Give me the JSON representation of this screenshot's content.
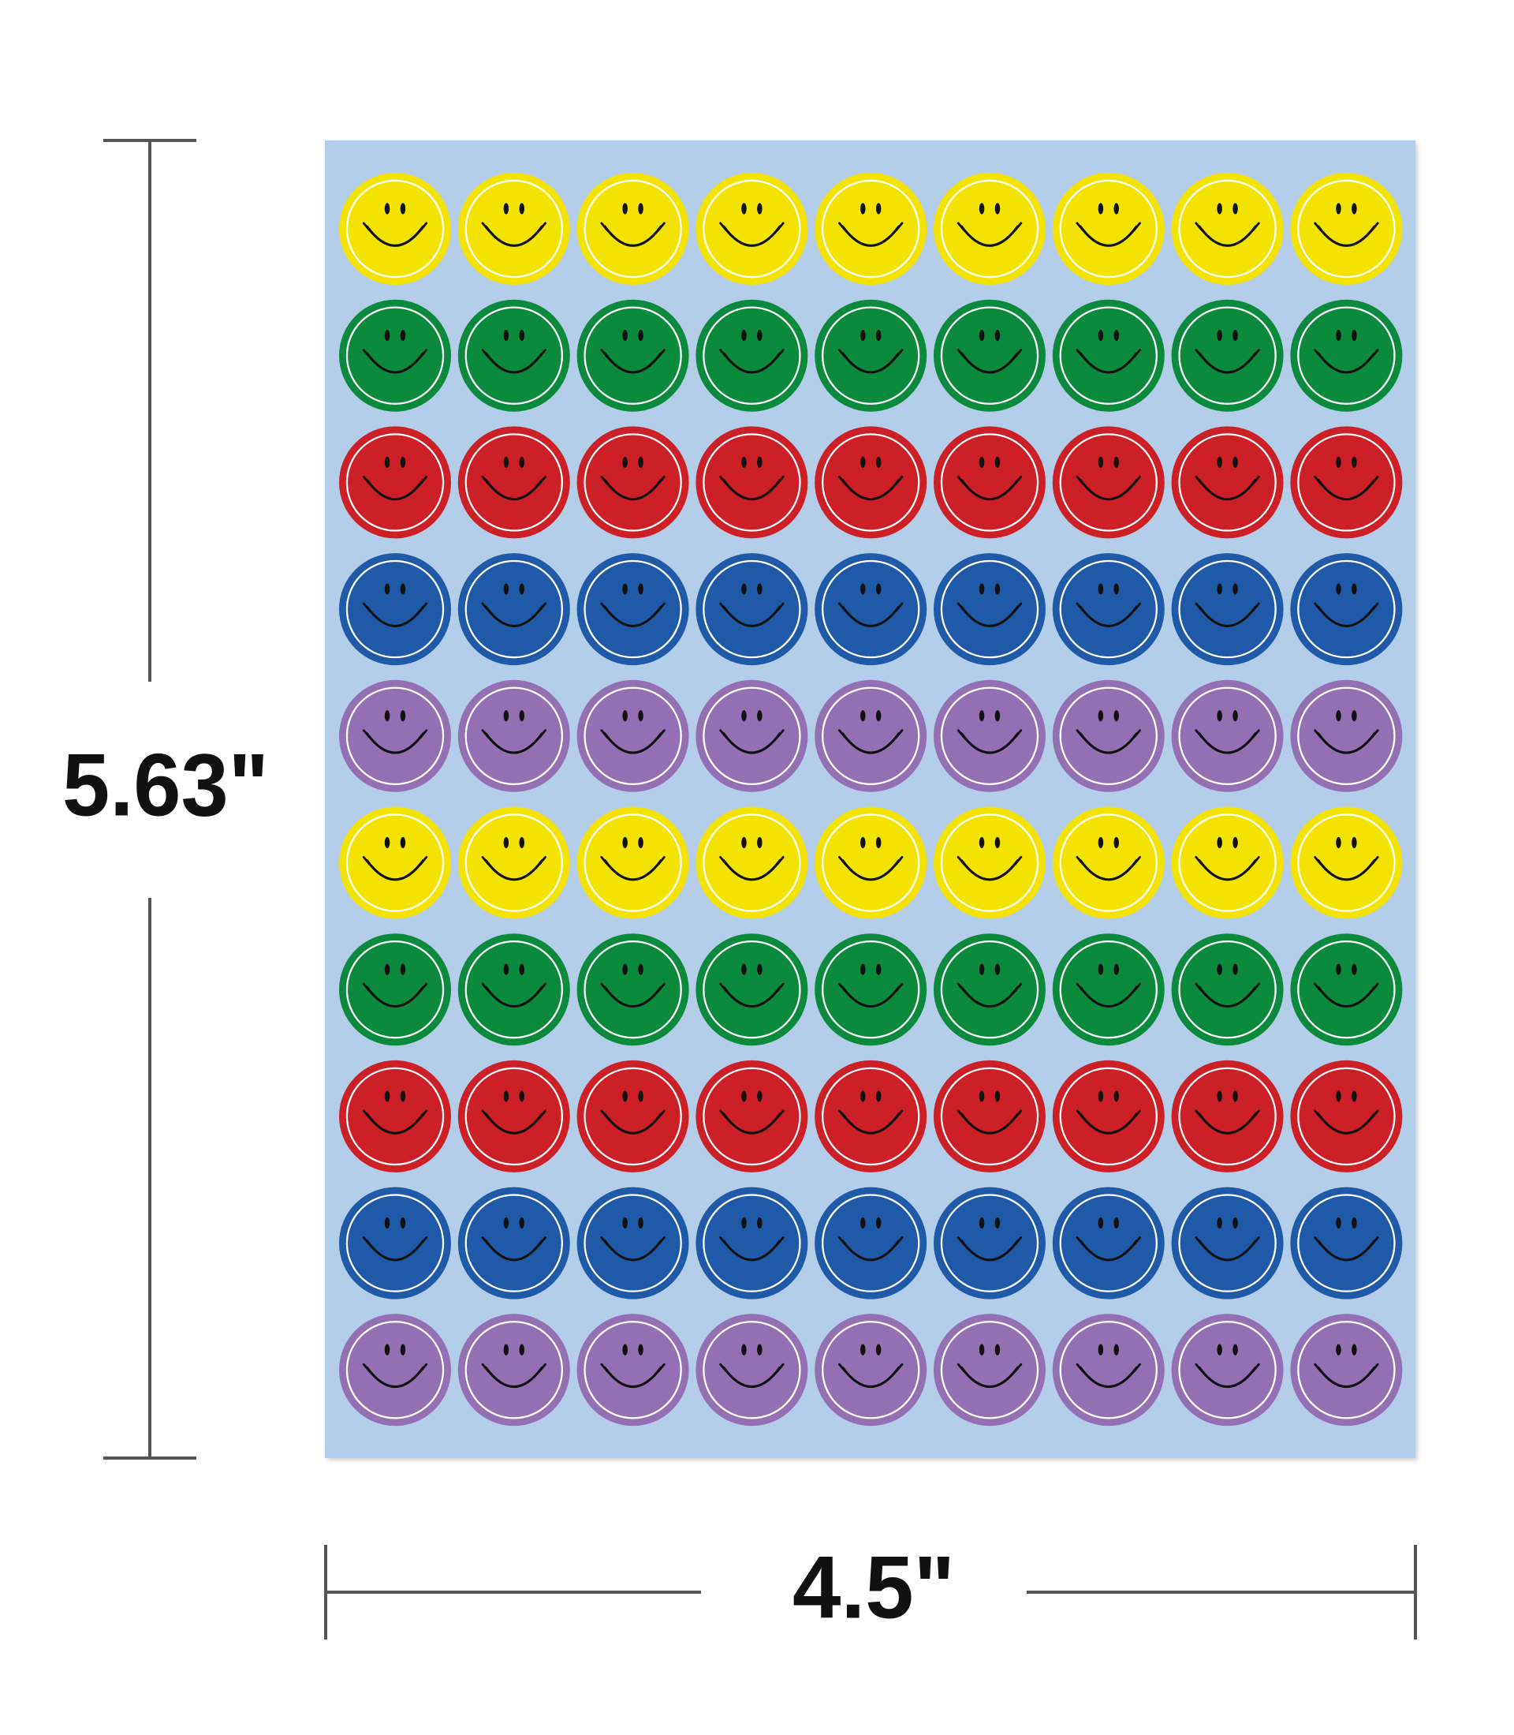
{
  "dimensions": {
    "height": "5.63\"",
    "width": "4.5\""
  }
}
